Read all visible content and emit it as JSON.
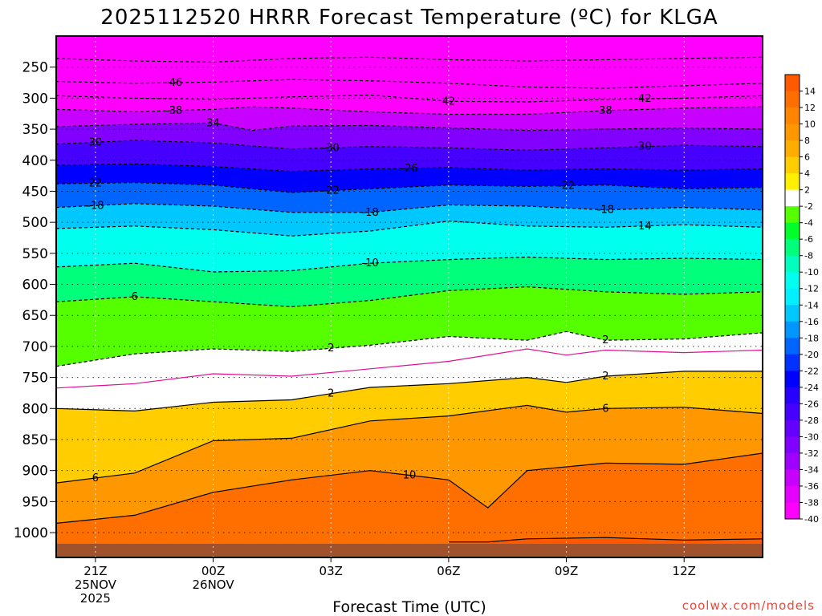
{
  "chart_data": {
    "type": "heatmap",
    "title": "2025112520 HRRR Forecast Temperature (ºC) for KLGA",
    "xlabel": "Forecast Time (UTC)",
    "ylabel": "",
    "x_ticks": [
      {
        "hour": 0,
        "lines": [
          "21Z",
          "25NOV",
          "2025"
        ]
      },
      {
        "hour": 3,
        "lines": [
          "00Z",
          "26NOV"
        ]
      },
      {
        "hour": 6,
        "lines": [
          "03Z"
        ]
      },
      {
        "hour": 9,
        "lines": [
          "06Z"
        ]
      },
      {
        "hour": 12,
        "lines": [
          "09Z"
        ]
      },
      {
        "hour": 15,
        "lines": [
          "12Z"
        ]
      }
    ],
    "x_range_hours": [
      -1,
      17
    ],
    "y_ticks_hpa": [
      250,
      300,
      350,
      400,
      450,
      500,
      550,
      600,
      650,
      700,
      750,
      800,
      850,
      900,
      950,
      1000
    ],
    "y_range_hpa": [
      200,
      1040
    ],
    "credit": "coolwx.com/models",
    "colorbar": {
      "tick_labels": [
        "14",
        "12",
        "10",
        "8",
        "6",
        "4",
        "2",
        "-2",
        "-4",
        "-6",
        "-8",
        "-10",
        "-12",
        "-14",
        "-16",
        "-18",
        "-20",
        "-22",
        "-24",
        "-26",
        "-28",
        "-30",
        "-32",
        "-34",
        "-36",
        "-38",
        "-40"
      ],
      "bins": [
        {
          "lo": 14,
          "hi": 16,
          "color": "#ff5a00"
        },
        {
          "lo": 12,
          "hi": 14,
          "color": "#ff6f00"
        },
        {
          "lo": 10,
          "hi": 12,
          "color": "#ff8400"
        },
        {
          "lo": 8,
          "hi": 10,
          "color": "#ff9800"
        },
        {
          "lo": 6,
          "hi": 8,
          "color": "#ffad00"
        },
        {
          "lo": 4,
          "hi": 6,
          "color": "#ffcd00"
        },
        {
          "lo": 2,
          "hi": 4,
          "color": "#fff000"
        },
        {
          "lo": -2,
          "hi": 2,
          "color": "#ffffff"
        },
        {
          "lo": -4,
          "hi": -2,
          "color": "#55ff00"
        },
        {
          "lo": -6,
          "hi": -4,
          "color": "#00ff2a"
        },
        {
          "lo": -8,
          "hi": -6,
          "color": "#00ff7a"
        },
        {
          "lo": -10,
          "hi": -8,
          "color": "#00ffbf"
        },
        {
          "lo": -12,
          "hi": -10,
          "color": "#00ffee"
        },
        {
          "lo": -14,
          "hi": -12,
          "color": "#00f0ff"
        },
        {
          "lo": -16,
          "hi": -14,
          "color": "#00c8ff"
        },
        {
          "lo": -18,
          "hi": -16,
          "color": "#0096ff"
        },
        {
          "lo": -20,
          "hi": -18,
          "color": "#0064ff"
        },
        {
          "lo": -22,
          "hi": -20,
          "color": "#0032ff"
        },
        {
          "lo": -24,
          "hi": -22,
          "color": "#0000ff"
        },
        {
          "lo": -26,
          "hi": -24,
          "color": "#2800ff"
        },
        {
          "lo": -28,
          "hi": -26,
          "color": "#4600ff"
        },
        {
          "lo": -30,
          "hi": -28,
          "color": "#6400ff"
        },
        {
          "lo": -32,
          "hi": -30,
          "color": "#8200ff"
        },
        {
          "lo": -34,
          "hi": -32,
          "color": "#a000ff"
        },
        {
          "lo": -36,
          "hi": -34,
          "color": "#c800ff"
        },
        {
          "lo": -38,
          "hi": -36,
          "color": "#e600ff"
        },
        {
          "lo": -40,
          "hi": -38,
          "color": "#ff00ff"
        },
        {
          "lo": -60,
          "hi": -40,
          "color": "#ff00ff"
        }
      ],
      "ground_color": "#a0522d"
    },
    "contours": [
      {
        "temp": -50,
        "style": "dashed",
        "points": [
          [
            -1,
            236
          ],
          [
            1,
            240
          ],
          [
            3,
            242
          ],
          [
            5,
            236
          ],
          [
            7,
            234
          ],
          [
            9,
            238
          ],
          [
            11,
            240
          ],
          [
            13,
            238
          ],
          [
            15,
            236
          ],
          [
            17,
            234
          ]
        ],
        "labels": []
      },
      {
        "temp": -46,
        "style": "dashed",
        "points": [
          [
            -1,
            273
          ],
          [
            1,
            276
          ],
          [
            3,
            274
          ],
          [
            5,
            270
          ],
          [
            7,
            272
          ],
          [
            9,
            276
          ],
          [
            11,
            282
          ],
          [
            13,
            284
          ],
          [
            15,
            280
          ],
          [
            17,
            276
          ]
        ],
        "labels": [
          {
            "x": 2,
            "text": "-46"
          }
        ]
      },
      {
        "temp": -42,
        "style": "dashed",
        "points": [
          [
            -1,
            296
          ],
          [
            1,
            300
          ],
          [
            3,
            302
          ],
          [
            5,
            298
          ],
          [
            7,
            295
          ],
          [
            9,
            305
          ],
          [
            11,
            306
          ],
          [
            13,
            302
          ],
          [
            15,
            300
          ],
          [
            17,
            296
          ]
        ],
        "labels": [
          {
            "x": 9,
            "text": "42"
          },
          {
            "x": 14,
            "text": "42"
          }
        ]
      },
      {
        "temp": -38,
        "style": "dashed",
        "points": [
          [
            -1,
            318
          ],
          [
            1,
            322
          ],
          [
            3,
            318
          ],
          [
            4,
            314
          ],
          [
            5,
            316
          ],
          [
            7,
            322
          ],
          [
            9,
            326
          ],
          [
            11,
            326
          ],
          [
            13,
            320
          ],
          [
            15,
            316
          ],
          [
            17,
            314
          ]
        ],
        "labels": [
          {
            "x": 2,
            "text": "-38"
          },
          {
            "x": 13,
            "text": "38"
          }
        ]
      },
      {
        "temp": -34,
        "style": "dashed",
        "points": [
          [
            -1,
            346
          ],
          [
            1,
            342
          ],
          [
            3,
            340
          ],
          [
            4,
            352
          ],
          [
            5,
            345
          ],
          [
            7,
            344
          ],
          [
            9,
            348
          ],
          [
            11,
            352
          ],
          [
            13,
            350
          ],
          [
            15,
            348
          ],
          [
            17,
            350
          ]
        ],
        "labels": [
          {
            "x": 3,
            "text": "34"
          }
        ]
      },
      {
        "temp": -30,
        "style": "dashed",
        "points": [
          [
            -1,
            374
          ],
          [
            1,
            368
          ],
          [
            3,
            372
          ],
          [
            5,
            382
          ],
          [
            7,
            378
          ],
          [
            9,
            380
          ],
          [
            11,
            384
          ],
          [
            13,
            380
          ],
          [
            15,
            376
          ],
          [
            17,
            378
          ]
        ],
        "labels": [
          {
            "x": 0,
            "text": "30"
          },
          {
            "x": 6,
            "text": "-30"
          },
          {
            "x": 14,
            "text": "30"
          }
        ]
      },
      {
        "temp": -26,
        "style": "dashed",
        "points": [
          [
            -1,
            408
          ],
          [
            1,
            406
          ],
          [
            3,
            410
          ],
          [
            5,
            418
          ],
          [
            7,
            414
          ],
          [
            9,
            412
          ],
          [
            11,
            416
          ],
          [
            13,
            414
          ],
          [
            15,
            416
          ],
          [
            17,
            414
          ]
        ],
        "labels": [
          {
            "x": 8,
            "text": "-26"
          }
        ]
      },
      {
        "temp": -22,
        "style": "dashed",
        "points": [
          [
            -1,
            438
          ],
          [
            1,
            436
          ],
          [
            3,
            440
          ],
          [
            5,
            452
          ],
          [
            7,
            446
          ],
          [
            9,
            440
          ],
          [
            11,
            442
          ],
          [
            13,
            440
          ],
          [
            15,
            446
          ],
          [
            17,
            444
          ]
        ],
        "labels": [
          {
            "x": 0,
            "text": "22"
          },
          {
            "x": 6,
            "text": "-22"
          },
          {
            "x": 12,
            "text": "-22"
          }
        ]
      },
      {
        "temp": -18,
        "style": "dashed",
        "points": [
          [
            -1,
            476
          ],
          [
            1,
            470
          ],
          [
            3,
            474
          ],
          [
            5,
            484
          ],
          [
            7,
            484
          ],
          [
            9,
            472
          ],
          [
            11,
            474
          ],
          [
            13,
            480
          ],
          [
            15,
            476
          ],
          [
            17,
            480
          ]
        ],
        "labels": [
          {
            "x": 0,
            "text": "-18"
          },
          {
            "x": 7,
            "text": "-18"
          },
          {
            "x": 13,
            "text": "-18"
          }
        ]
      },
      {
        "temp": -14,
        "style": "dashed",
        "points": [
          [
            -1,
            510
          ],
          [
            1,
            506
          ],
          [
            3,
            512
          ],
          [
            5,
            522
          ],
          [
            7,
            514
          ],
          [
            9,
            498
          ],
          [
            11,
            506
          ],
          [
            13,
            508
          ],
          [
            15,
            504
          ],
          [
            17,
            508
          ]
        ],
        "labels": [
          {
            "x": 14,
            "text": "14"
          }
        ]
      },
      {
        "temp": -10,
        "style": "dashed",
        "points": [
          [
            -1,
            572
          ],
          [
            1,
            566
          ],
          [
            3,
            580
          ],
          [
            5,
            578
          ],
          [
            7,
            566
          ],
          [
            9,
            560
          ],
          [
            11,
            556
          ],
          [
            13,
            560
          ],
          [
            15,
            558
          ],
          [
            17,
            560
          ]
        ],
        "labels": [
          {
            "x": 7,
            "text": "-10"
          }
        ]
      },
      {
        "temp": -6,
        "style": "dashed",
        "points": [
          [
            -1,
            628
          ],
          [
            1,
            620
          ],
          [
            3,
            628
          ],
          [
            5,
            636
          ],
          [
            7,
            626
          ],
          [
            9,
            610
          ],
          [
            11,
            604
          ],
          [
            13,
            612
          ],
          [
            15,
            616
          ],
          [
            17,
            612
          ]
        ],
        "labels": [
          {
            "x": 1,
            "text": "6"
          }
        ]
      },
      {
        "temp": -2,
        "style": "dashed",
        "points": [
          [
            -1,
            732
          ],
          [
            1,
            712
          ],
          [
            3,
            704
          ],
          [
            5,
            708
          ],
          [
            7,
            698
          ],
          [
            9,
            684
          ],
          [
            11,
            690
          ],
          [
            12,
            676
          ],
          [
            13,
            690
          ],
          [
            15,
            688
          ],
          [
            17,
            678
          ]
        ],
        "labels": [
          {
            "x": 6,
            "text": "2"
          },
          {
            "x": 13,
            "text": "2"
          }
        ]
      },
      {
        "temp": 0,
        "style": "magenta",
        "points": [
          [
            -1,
            767
          ],
          [
            1,
            760
          ],
          [
            3,
            744
          ],
          [
            5,
            748
          ],
          [
            7,
            736
          ],
          [
            9,
            724
          ],
          [
            11,
            704
          ],
          [
            12,
            714
          ],
          [
            13,
            706
          ],
          [
            15,
            710
          ],
          [
            17,
            706
          ]
        ],
        "labels": []
      },
      {
        "temp": 2,
        "style": "solid",
        "points": [
          [
            -1,
            800
          ],
          [
            1,
            804
          ],
          [
            3,
            790
          ],
          [
            5,
            786
          ],
          [
            7,
            766
          ],
          [
            9,
            760
          ],
          [
            11,
            750
          ],
          [
            12,
            758
          ],
          [
            13,
            748
          ],
          [
            15,
            740
          ],
          [
            17,
            740
          ]
        ],
        "labels": [
          {
            "x": 6,
            "text": "2"
          },
          {
            "x": 13,
            "text": "2"
          }
        ]
      },
      {
        "temp": 6,
        "style": "solid",
        "points": [
          [
            -1,
            920
          ],
          [
            1,
            904
          ],
          [
            3,
            852
          ],
          [
            5,
            848
          ],
          [
            7,
            820
          ],
          [
            9,
            812
          ],
          [
            11,
            795
          ],
          [
            12,
            806
          ],
          [
            13,
            800
          ],
          [
            15,
            798
          ],
          [
            17,
            808
          ]
        ],
        "labels": [
          {
            "x": 0,
            "text": "6"
          },
          {
            "x": 13,
            "text": "6"
          }
        ]
      },
      {
        "temp": 10,
        "style": "solid",
        "points": [
          [
            -1,
            985
          ],
          [
            1,
            972
          ],
          [
            3,
            935
          ],
          [
            5,
            915
          ],
          [
            7,
            900
          ],
          [
            9,
            915
          ],
          [
            10,
            960
          ],
          [
            11,
            900
          ],
          [
            13,
            888
          ],
          [
            15,
            890
          ],
          [
            17,
            872
          ]
        ],
        "labels": [
          {
            "x": 8,
            "text": "10"
          }
        ]
      },
      {
        "temp": 14,
        "style": "solid",
        "points": [
          [
            9,
            1015
          ],
          [
            10,
            1015
          ],
          [
            11,
            1010
          ],
          [
            13,
            1008
          ],
          [
            15,
            1012
          ],
          [
            17,
            1010
          ]
        ],
        "labels": []
      }
    ]
  }
}
